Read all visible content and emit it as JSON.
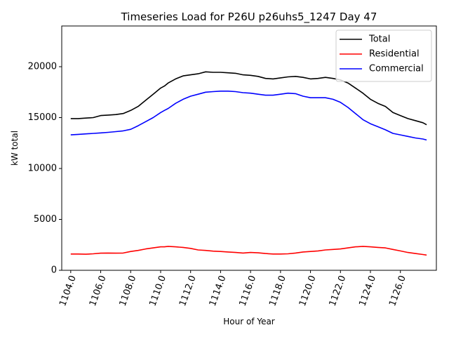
{
  "chart_data": {
    "type": "line",
    "title": "Timeseries Load for P26U p26uhs5_1247  Day 47",
    "xlabel": "Hour of Year",
    "ylabel": "kW total",
    "xlim": [
      1103.4,
      1128.4
    ],
    "ylim": [
      0,
      24000
    ],
    "xticks": [
      1104,
      1106,
      1108,
      1110,
      1112,
      1114,
      1116,
      1118,
      1120,
      1122,
      1124,
      1126
    ],
    "xtick_labels": [
      "1104.0",
      "1106.0",
      "1108.0",
      "1110.0",
      "1112.0",
      "1114.0",
      "1116.0",
      "1118.0",
      "1120.0",
      "1122.0",
      "1124.0",
      "1126.0"
    ],
    "yticks": [
      0,
      5000,
      10000,
      15000,
      20000
    ],
    "ytick_labels": [
      "0",
      "5000",
      "10000",
      "15000",
      "20000"
    ],
    "grid": false,
    "legend_position": "top-right",
    "series": [
      {
        "name": "Total",
        "color": "#000000",
        "x": [
          1104.0,
          1104.5,
          1105.0,
          1105.5,
          1106.0,
          1106.5,
          1107.0,
          1107.5,
          1108.0,
          1108.5,
          1109.0,
          1109.5,
          1110.0,
          1110.25,
          1110.5,
          1111.0,
          1111.5,
          1112.0,
          1112.5,
          1113.0,
          1113.5,
          1114.0,
          1114.5,
          1115.0,
          1115.5,
          1116.0,
          1116.5,
          1117.0,
          1117.5,
          1118.0,
          1118.5,
          1119.0,
          1119.5,
          1120.0,
          1120.5,
          1121.0,
          1121.5,
          1122.0,
          1122.5,
          1123.0,
          1123.5,
          1124.0,
          1124.5,
          1125.0,
          1125.5,
          1126.0,
          1126.5,
          1127.0,
          1127.5,
          1127.75
        ],
        "values": [
          14900,
          14900,
          14950,
          15000,
          15200,
          15250,
          15300,
          15400,
          15700,
          16100,
          16700,
          17300,
          17900,
          18100,
          18400,
          18800,
          19100,
          19200,
          19300,
          19500,
          19450,
          19450,
          19400,
          19350,
          19200,
          19150,
          19050,
          18850,
          18800,
          18900,
          19000,
          19050,
          18950,
          18800,
          18850,
          18950,
          18850,
          18700,
          18400,
          17900,
          17400,
          16800,
          16400,
          16100,
          15500,
          15200,
          14900,
          14700,
          14500,
          14300
        ]
      },
      {
        "name": "Residential",
        "color": "#ff0000",
        "x": [
          1104.0,
          1104.5,
          1105.0,
          1105.5,
          1106.0,
          1106.5,
          1107.0,
          1107.5,
          1108.0,
          1108.5,
          1109.0,
          1109.5,
          1110.0,
          1110.25,
          1110.5,
          1111.0,
          1111.5,
          1112.0,
          1112.5,
          1113.0,
          1113.5,
          1114.0,
          1114.5,
          1115.0,
          1115.5,
          1116.0,
          1116.5,
          1117.0,
          1117.5,
          1118.0,
          1118.5,
          1119.0,
          1119.5,
          1120.0,
          1120.5,
          1121.0,
          1121.5,
          1122.0,
          1122.5,
          1123.0,
          1123.5,
          1124.0,
          1124.5,
          1125.0,
          1125.5,
          1126.0,
          1126.5,
          1127.0,
          1127.5,
          1127.75
        ],
        "values": [
          1600,
          1600,
          1580,
          1620,
          1680,
          1700,
          1680,
          1700,
          1850,
          1950,
          2100,
          2200,
          2300,
          2300,
          2350,
          2300,
          2250,
          2150,
          2000,
          1950,
          1880,
          1850,
          1800,
          1750,
          1700,
          1750,
          1720,
          1650,
          1600,
          1600,
          1620,
          1700,
          1800,
          1850,
          1900,
          2000,
          2050,
          2100,
          2200,
          2300,
          2350,
          2300,
          2250,
          2200,
          2050,
          1900,
          1750,
          1650,
          1550,
          1500
        ]
      },
      {
        "name": "Commercial",
        "color": "#0000ff",
        "x": [
          1104.0,
          1104.5,
          1105.0,
          1105.5,
          1106.0,
          1106.5,
          1107.0,
          1107.5,
          1108.0,
          1108.5,
          1109.0,
          1109.5,
          1110.0,
          1110.25,
          1110.5,
          1111.0,
          1111.5,
          1112.0,
          1112.5,
          1113.0,
          1113.5,
          1114.0,
          1114.5,
          1115.0,
          1115.5,
          1116.0,
          1116.5,
          1117.0,
          1117.5,
          1118.0,
          1118.5,
          1119.0,
          1119.5,
          1120.0,
          1120.5,
          1121.0,
          1121.5,
          1122.0,
          1122.5,
          1123.0,
          1123.5,
          1124.0,
          1124.5,
          1125.0,
          1125.5,
          1126.0,
          1126.5,
          1127.0,
          1127.5,
          1127.75
        ],
        "values": [
          13300,
          13350,
          13400,
          13450,
          13500,
          13550,
          13620,
          13700,
          13850,
          14200,
          14600,
          15000,
          15500,
          15700,
          15900,
          16400,
          16800,
          17100,
          17300,
          17500,
          17550,
          17600,
          17600,
          17550,
          17450,
          17400,
          17300,
          17200,
          17200,
          17300,
          17400,
          17350,
          17100,
          16950,
          16950,
          16950,
          16800,
          16500,
          16000,
          15400,
          14800,
          14400,
          14100,
          13800,
          13450,
          13300,
          13150,
          13000,
          12900,
          12800
        ]
      }
    ]
  }
}
